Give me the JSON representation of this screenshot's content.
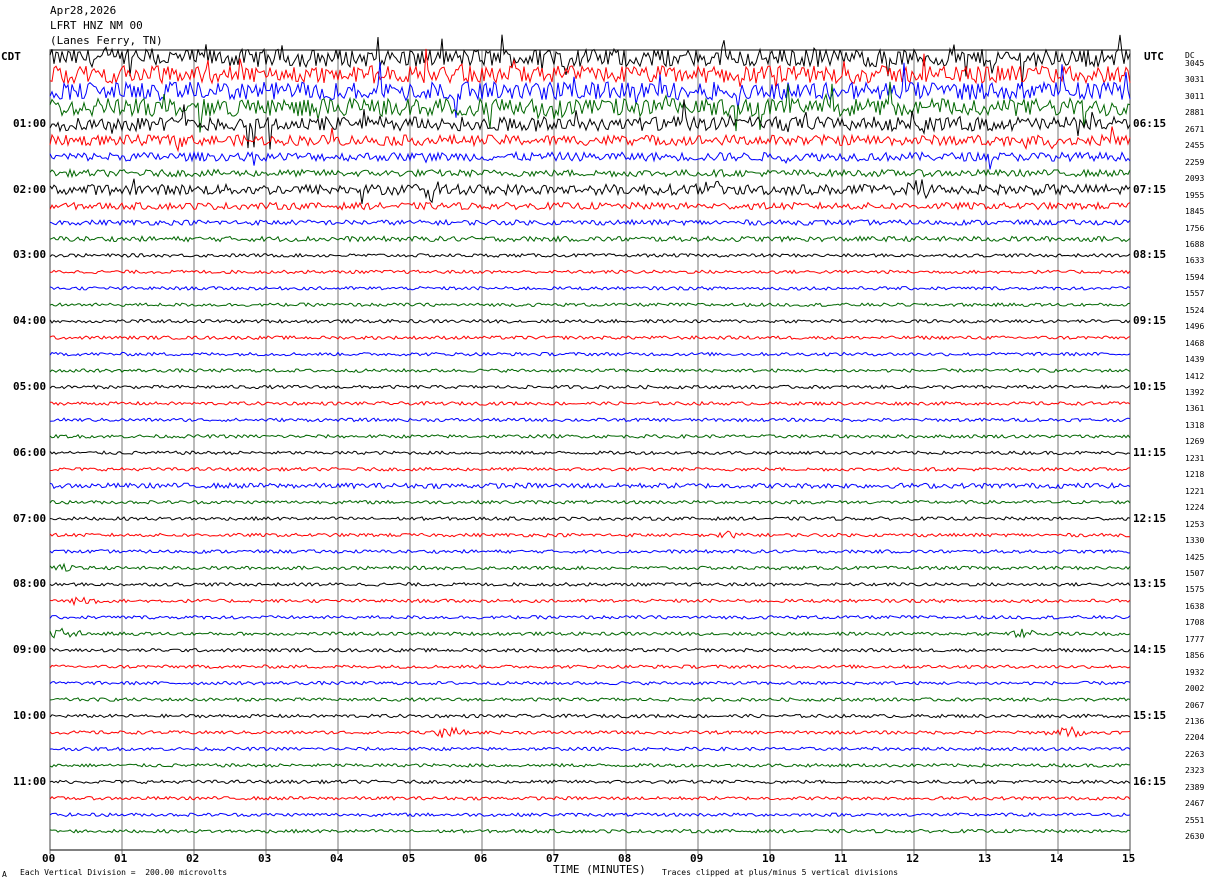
{
  "header": {
    "date": "Apr28,2026",
    "station": "LFRT HNZ NM 00",
    "location": "(Lanes Ferry, TN)"
  },
  "left_tz": "CDT",
  "right_tz": "UTC",
  "dc_label": "DC",
  "footer": {
    "x_title": "TIME (MINUTES)",
    "scale_note": "Each Vertical Division =  200.00 microvolts",
    "clip_note": "Traces clipped at plus/minus 5 vertical divisions",
    "corner_mark": "A"
  },
  "colors": {
    "cycle": [
      "#000000",
      "#ff0000",
      "#0000ff",
      "#006600"
    ],
    "grid": "#000000"
  },
  "chart_data": {
    "type": "line",
    "title": "Apr28,2026 LFRT HNZ NM 00 (Lanes Ferry, TN)",
    "xlabel": "TIME (MINUTES)",
    "xlim": [
      0,
      15
    ],
    "x_ticks": [
      "00",
      "01",
      "02",
      "03",
      "04",
      "05",
      "06",
      "07",
      "08",
      "09",
      "10",
      "11",
      "12",
      "13",
      "14",
      "15"
    ],
    "left_hour_labels": [
      "01:00",
      "02:00",
      "03:00",
      "04:00",
      "05:00",
      "06:00",
      "07:00",
      "08:00",
      "09:00",
      "10:00",
      "11:00"
    ],
    "right_hour_labels": [
      "06:15",
      "07:15",
      "08:15",
      "09:15",
      "10:15",
      "11:15",
      "12:15",
      "13:15",
      "14:15",
      "15:15",
      "16:15"
    ],
    "trace_count": 48,
    "minutes_per_trace": 15,
    "dc_offsets": [
      "3045",
      "3031",
      "3011",
      "2881",
      "2671",
      "2455",
      "2259",
      "2093",
      "1955",
      "1845",
      "1756",
      "1688",
      "1633",
      "1594",
      "1557",
      "1524",
      "1496",
      "1468",
      "1439",
      "1412",
      "1392",
      "1361",
      "1318",
      "1269",
      "1231",
      "1218",
      "1221",
      "1224",
      "1253",
      "1330",
      "1425",
      "1507",
      "1575",
      "1638",
      "1708",
      "1777",
      "1856",
      "1932",
      "2002",
      "2067",
      "2136",
      "2204",
      "2263",
      "2323",
      "2389",
      "2467",
      "2551",
      "2630"
    ],
    "activity_level": [
      9,
      9,
      9,
      9,
      7,
      5,
      4,
      3,
      5,
      3,
      2,
      2,
      1,
      1,
      1,
      1,
      1,
      1,
      1,
      1,
      1,
      1,
      1,
      1,
      1,
      1,
      2,
      1,
      1,
      1,
      1,
      1,
      1,
      1,
      1,
      1,
      1,
      1,
      1,
      1,
      1,
      1,
      1,
      1,
      1,
      1,
      1,
      1
    ],
    "events": [
      {
        "trace": 29,
        "minute": 9.4,
        "amp": 4
      },
      {
        "trace": 31,
        "minute": 0.2,
        "amp": 5
      },
      {
        "trace": 33,
        "minute": 0.5,
        "amp": 5
      },
      {
        "trace": 35,
        "minute": 0.2,
        "amp": 6
      },
      {
        "trace": 35,
        "minute": 13.5,
        "amp": 5
      },
      {
        "trace": 41,
        "minute": 5.5,
        "amp": 5
      },
      {
        "trace": 41,
        "minute": 14.1,
        "amp": 6
      },
      {
        "trace": 8,
        "minute": 5.3,
        "amp": 8
      },
      {
        "trace": 8,
        "minute": 9.2,
        "amp": 8
      },
      {
        "trace": 8,
        "minute": 12.0,
        "amp": 10
      }
    ]
  }
}
